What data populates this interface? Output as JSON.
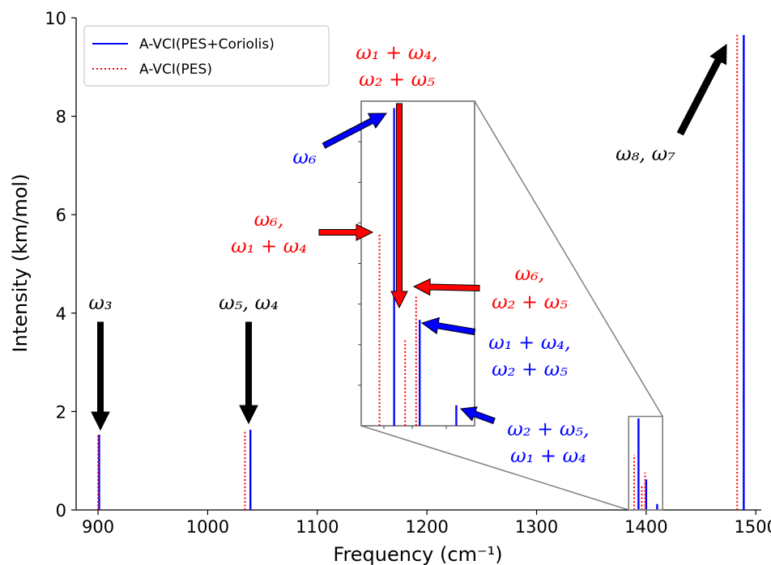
{
  "chart_data": {
    "type": "line",
    "xlabel": "Frequency (cm⁻¹)",
    "ylabel": "Intensity (km/mol)",
    "xlim": [
      880,
      1505
    ],
    "ylim": [
      0,
      10
    ],
    "x_ticks": [
      900,
      1000,
      1100,
      1200,
      1300,
      1400,
      1500
    ],
    "y_ticks": [
      0,
      2,
      4,
      6,
      8,
      10
    ],
    "legend": {
      "placement": "top-left",
      "entries": [
        {
          "label": "A-VCI(PES+Coriolis)",
          "color": "#0000ff",
          "style": "solid"
        },
        {
          "label": "A-VCI(PES)",
          "color": "#ff0000",
          "style": "dotted"
        }
      ]
    },
    "series": [
      {
        "name": "A-VCI(PES+Coriolis)",
        "color": "#0000ff",
        "style": "solid",
        "points": [
          {
            "x": 901,
            "y": 1.53
          },
          {
            "x": 1039,
            "y": 1.63
          },
          {
            "x": 1393,
            "y": 1.86
          },
          {
            "x": 1400,
            "y": 0.62
          },
          {
            "x": 1410,
            "y": 0.12
          },
          {
            "x": 1489,
            "y": 9.65
          }
        ]
      },
      {
        "name": "A-VCI(PES)",
        "color": "#ff0000",
        "style": "dotted",
        "points": [
          {
            "x": 900,
            "y": 1.53
          },
          {
            "x": 1034,
            "y": 1.63
          },
          {
            "x": 1389,
            "y": 1.12
          },
          {
            "x": 1396,
            "y": 0.5
          },
          {
            "x": 1399,
            "y": 0.76
          },
          {
            "x": 1483,
            "y": 9.65
          }
        ]
      }
    ],
    "inset": {
      "xlim": [
        1384,
        1415
      ],
      "ylim": [
        0,
        1.9
      ],
      "region_box_ylim": [
        0,
        1.9
      ]
    },
    "annotations": [
      {
        "id": "w3",
        "text": "ω₃",
        "color": "#000000"
      },
      {
        "id": "w5w4",
        "text": "ω₅, ω₄",
        "color": "#000000"
      },
      {
        "id": "w8w7",
        "text": "ω₈, ω₇",
        "color": "#000000"
      },
      {
        "id": "red_top_1",
        "text": "ω₁ + ω₄,",
        "color": "#ff0000"
      },
      {
        "id": "red_top_2",
        "text": "ω₂ + ω₅",
        "color": "#ff0000"
      },
      {
        "id": "blue_w6",
        "text": "ω₆",
        "color": "#0000ff"
      },
      {
        "id": "red_left_1",
        "text": "ω₆,",
        "color": "#ff0000"
      },
      {
        "id": "red_left_2",
        "text": "ω₁ + ω₄",
        "color": "#ff0000"
      },
      {
        "id": "red_right_1",
        "text": "ω₆,",
        "color": "#ff0000"
      },
      {
        "id": "red_right_2",
        "text": "ω₂ + ω₅",
        "color": "#ff0000"
      },
      {
        "id": "blue_mid_1",
        "text": "ω₁ + ω₄,",
        "color": "#0000ff"
      },
      {
        "id": "blue_mid_2",
        "text": "ω₂ + ω₅",
        "color": "#0000ff"
      },
      {
        "id": "blue_low_1",
        "text": "ω₂ + ω₅,",
        "color": "#0000ff"
      },
      {
        "id": "blue_low_2",
        "text": "ω₁ + ω₄",
        "color": "#0000ff"
      }
    ]
  }
}
